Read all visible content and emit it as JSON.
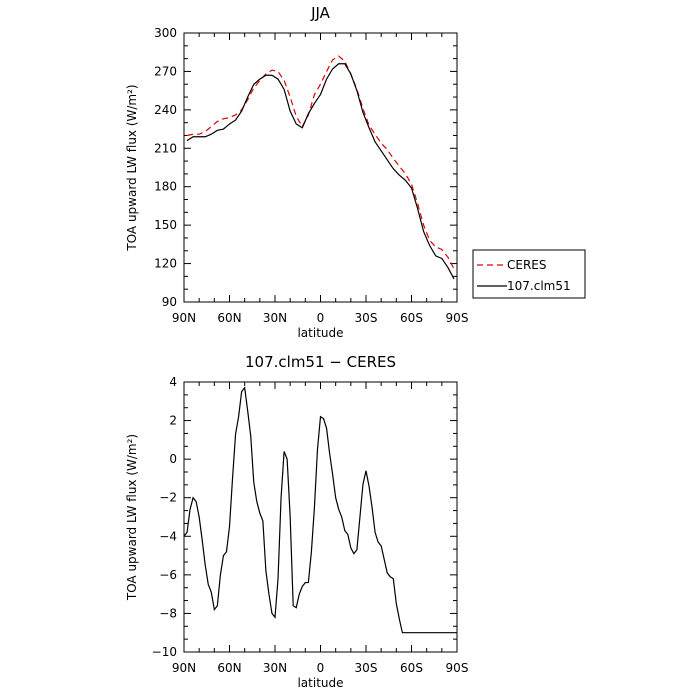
{
  "chart_data": [
    {
      "type": "line",
      "title": "JJA",
      "xlabel": "latitude",
      "ylabel_main": "TOA upward LW flux",
      "ylabel_unit": "(W/m²)",
      "xlim": [
        90,
        -90
      ],
      "ylim": [
        90,
        300
      ],
      "x_ticks": [
        90,
        60,
        30,
        0,
        -30,
        -60,
        -90
      ],
      "x_tick_labels": [
        "90N",
        "60N",
        "30N",
        "0",
        "30S",
        "60S",
        "90S"
      ],
      "y_ticks": [
        90,
        120,
        150,
        180,
        210,
        240,
        270,
        300
      ],
      "y_tick_labels": [
        "90",
        "120",
        "150",
        "180",
        "210",
        "240",
        "270",
        "300"
      ],
      "legend_position": "right",
      "series": [
        {
          "name": "CERES",
          "color": "#e00000",
          "style": "dashed",
          "x": [
            88,
            84,
            80,
            76,
            72,
            68,
            64,
            60,
            56,
            52,
            48,
            44,
            40,
            36,
            32,
            28,
            24,
            20,
            16,
            12,
            8,
            4,
            0,
            -4,
            -8,
            -12,
            -16,
            -20,
            -24,
            -28,
            -32,
            -36,
            -40,
            -44,
            -48,
            -52,
            -56,
            -60,
            -64,
            -68,
            -72,
            -76,
            -80,
            -84,
            -88
          ],
          "values": [
            220,
            221,
            221,
            223,
            227,
            231,
            233,
            234,
            236,
            240,
            248,
            257,
            263,
            268,
            271,
            270,
            263,
            250,
            235,
            227,
            236,
            252,
            260,
            270,
            279,
            282,
            278,
            268,
            256,
            241,
            228,
            221,
            214,
            209,
            202,
            196,
            190,
            182,
            167,
            150,
            138,
            133,
            131,
            125,
            116
          ]
        },
        {
          "name": "107.clm51",
          "color": "#000000",
          "style": "solid",
          "x": [
            88,
            84,
            80,
            76,
            72,
            68,
            64,
            60,
            56,
            52,
            48,
            44,
            40,
            36,
            32,
            28,
            24,
            20,
            16,
            12,
            8,
            4,
            0,
            -4,
            -8,
            -12,
            -16,
            -20,
            -24,
            -28,
            -32,
            -36,
            -40,
            -44,
            -48,
            -52,
            -56,
            -60,
            -64,
            -68,
            -72,
            -76,
            -80,
            -84,
            -88
          ],
          "values": [
            216,
            219,
            219,
            219,
            221,
            224,
            225,
            229,
            232,
            239,
            250,
            260,
            264,
            267,
            267,
            264,
            256,
            239,
            229,
            226,
            237,
            245,
            252,
            264,
            272,
            276,
            276,
            268,
            255,
            238,
            226,
            215,
            208,
            201,
            194,
            189,
            185,
            179,
            163,
            145,
            134,
            126,
            124,
            117,
            108
          ]
        }
      ]
    },
    {
      "type": "line",
      "title": "107.clm51 − CERES",
      "xlabel": "latitude",
      "ylabel_main": "TOA upward LW flux",
      "ylabel_unit": "(W/m²)",
      "xlim": [
        90,
        -90
      ],
      "ylim": [
        -10,
        4
      ],
      "x_ticks": [
        90,
        60,
        30,
        0,
        -30,
        -60,
        -90
      ],
      "x_tick_labels": [
        "90N",
        "60N",
        "30N",
        "0",
        "30S",
        "60S",
        "90S"
      ],
      "y_ticks": [
        -10,
        -8,
        -6,
        -4,
        -2,
        0,
        2,
        4
      ],
      "y_tick_labels": [
        "−10",
        "−8",
        "−6",
        "−4",
        "−2",
        "0",
        "2",
        "4"
      ],
      "series": [
        {
          "color": "#000000",
          "style": "solid",
          "x": [
            90,
            88,
            86,
            84,
            82,
            80,
            78,
            76,
            74,
            72,
            70,
            68,
            66,
            64,
            62,
            60,
            58,
            56,
            54,
            52,
            50,
            48,
            46,
            44,
            42,
            40,
            38,
            36,
            34,
            32,
            30,
            28,
            26,
            24,
            22,
            20,
            18,
            16,
            14,
            12,
            10,
            8,
            6,
            4,
            2,
            0,
            -2,
            -4,
            -6,
            -8,
            -10,
            -12,
            -14,
            -16,
            -18,
            -20,
            -22,
            -24,
            -26,
            -28,
            -30,
            -32,
            -34,
            -36,
            -38,
            -40,
            -42,
            -44,
            -46,
            -48,
            -50,
            -52,
            -54,
            -56,
            -58,
            -60,
            -62,
            -64,
            -66,
            -68,
            -70,
            -72,
            -74,
            -76,
            -78,
            -80,
            -82,
            -84,
            -86,
            -88,
            -90
          ],
          "values": [
            -4.0,
            -3.8,
            -2.6,
            -2.0,
            -2.2,
            -3.0,
            -4.2,
            -5.5,
            -6.5,
            -6.9,
            -7.8,
            -7.6,
            -6.0,
            -5.0,
            -4.8,
            -3.5,
            -1.0,
            1.3,
            2.2,
            3.5,
            3.7,
            2.5,
            1.2,
            -1.2,
            -2.2,
            -2.8,
            -3.2,
            -5.8,
            -7.0,
            -8.0,
            -8.2,
            -6.2,
            -2.0,
            0.4,
            0.0,
            -3.0,
            -7.6,
            -7.7,
            -7.0,
            -6.6,
            -6.4,
            -6.4,
            -4.8,
            -2.5,
            0.5,
            2.2,
            2.1,
            1.6,
            0.3,
            -0.8,
            -2.0,
            -2.6,
            -3.0,
            -3.7,
            -3.9,
            -4.6,
            -4.9,
            -4.7,
            -3.0,
            -1.3,
            -0.6,
            -1.4,
            -2.5,
            -3.8,
            -4.3,
            -4.5,
            -5.2,
            -5.9,
            -6.1,
            -6.2,
            -7.5,
            -8.3,
            -9.0,
            -9.0,
            -9.0,
            -9.0,
            -9.0,
            -9.0,
            -9.0,
            -9.0,
            -9.0,
            -9.0,
            -9.0,
            -9.0,
            -9.0,
            -9.0,
            -9.0,
            -9.0,
            -9.0,
            -9.0,
            -9.0
          ]
        }
      ]
    }
  ]
}
